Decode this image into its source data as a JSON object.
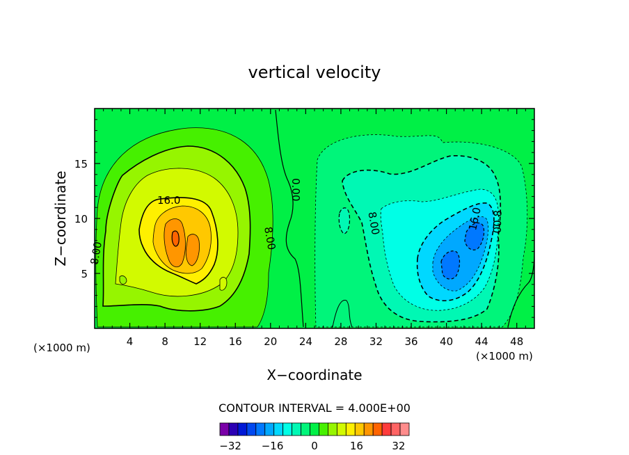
{
  "chart_data": {
    "type": "heatmap",
    "title": "vertical velocity",
    "xlabel": "X−coordinate",
    "ylabel": "Z−coordinate",
    "x_unit_left": "(×1000 m)",
    "x_unit_right": "(×1000 m)",
    "xlim": [
      0,
      50
    ],
    "ylim": [
      0,
      20
    ],
    "x_ticks": [
      4,
      8,
      12,
      16,
      20,
      24,
      28,
      32,
      36,
      40,
      44,
      48
    ],
    "y_ticks": [
      5,
      10,
      15
    ],
    "contour_interval_text": "CONTOUR INTERVAL = 4.000E+00",
    "contour_interval": 4,
    "colorbar": {
      "range": [
        -36,
        36
      ],
      "tick_values": [
        -32,
        -16,
        0,
        16,
        32
      ],
      "tick_labels": [
        "−32",
        "−16",
        "0",
        "16",
        "32"
      ],
      "colors": [
        "#7a00a8",
        "#2b00b4",
        "#0018d6",
        "#0048f0",
        "#0078ff",
        "#00a8ff",
        "#00d8ff",
        "#00ffe6",
        "#00f8b4",
        "#00f57a",
        "#00f046",
        "#46f000",
        "#96f500",
        "#d2fa00",
        "#fff000",
        "#ffc800",
        "#ff9600",
        "#ff6400",
        "#ff3c3c",
        "#ff6464",
        "#ff8c8c"
      ]
    },
    "contour_labels": [
      "16.0",
      "8.00",
      "8.00",
      "0.00",
      "8.00",
      "16.0",
      "00 8"
    ],
    "features": [
      {
        "kind": "updraft",
        "center": [
          10,
          9
        ],
        "peak": 26
      },
      {
        "kind": "downdraft",
        "center": [
          41.5,
          7
        ],
        "peak": -28
      }
    ]
  }
}
